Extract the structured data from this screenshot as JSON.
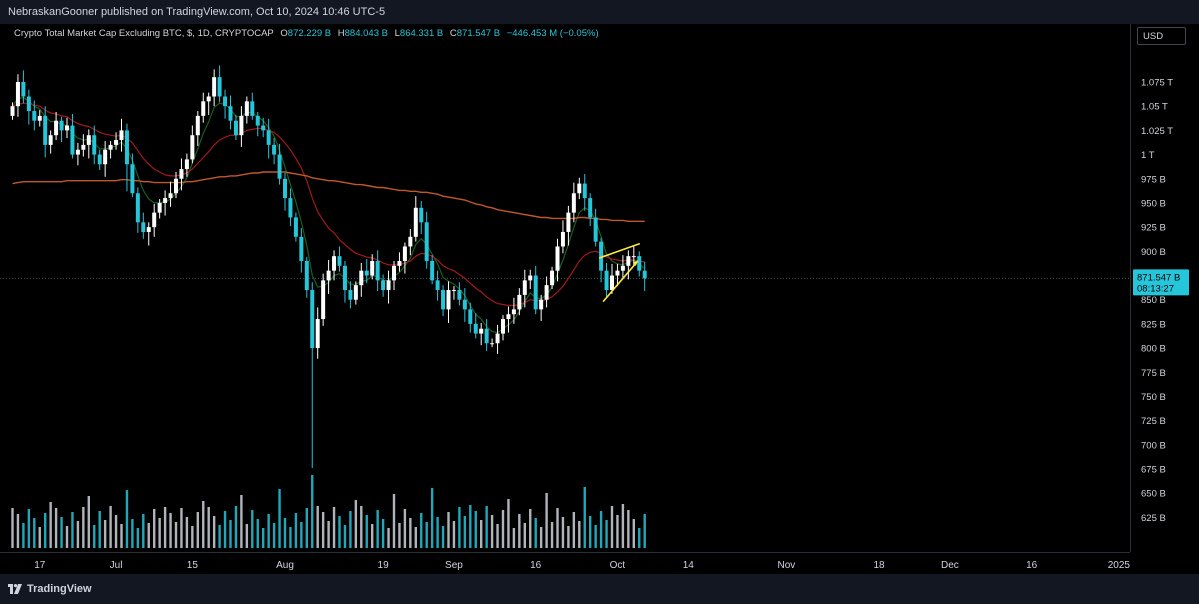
{
  "header": {
    "published": "NebraskanGooner published on TradingView.com, Oct 10, 2024 10:46 UTC-5"
  },
  "legend": {
    "symbol": "Crypto Total Market Cap Excluding BTC, $, 1D, CRYPTOCAP",
    "o_label": "O",
    "open": "872.229 B",
    "h_label": "H",
    "high": "884.043 B",
    "l_label": "L",
    "low": "864.331 B",
    "c_label": "C",
    "close": "871.547 B",
    "change": "−446.453 M (−0.05%)"
  },
  "price_axis": {
    "currency": "USD",
    "current_price": "871.547 B",
    "countdown": "08:13:27"
  },
  "footer": {
    "brand": "TradingView"
  },
  "colors": {
    "up": "#ffffff",
    "down": "#26c6da",
    "ema_fast": "#1b5e20",
    "ema_mid": "#a11a1a",
    "ema_slow": "#c0582b",
    "drawing": "#ffeb3b",
    "price_label_bg": "#26c6da"
  },
  "chart_data": {
    "type": "candlestick",
    "title": "Crypto Total Market Cap Excluding BTC, $, 1D, CRYPTOCAP",
    "ylabel": "USD",
    "ylim": [
      620,
      1085
    ],
    "y_ticks": [
      "1.075 T",
      "1.05 T",
      "1.025 T",
      "1 T",
      "975 B",
      "950 B",
      "925 B",
      "900 B",
      "875 B",
      "850 B",
      "825 B",
      "800 B",
      "775 B",
      "750 B",
      "725 B",
      "700 B",
      "675 B",
      "650 B",
      "625 B"
    ],
    "y_tick_values": [
      1075,
      1050,
      1025,
      1000,
      975,
      950,
      925,
      900,
      875,
      850,
      825,
      800,
      775,
      750,
      725,
      700,
      675,
      650,
      625
    ],
    "x_ticks": [
      {
        "label": "17",
        "date": "2024-06-17"
      },
      {
        "label": "Jul",
        "date": "2024-07-01"
      },
      {
        "label": "15",
        "date": "2024-07-15"
      },
      {
        "label": "Aug",
        "date": "2024-08-01"
      },
      {
        "label": "19",
        "date": "2024-08-19"
      },
      {
        "label": "Sep",
        "date": "2024-09-01"
      },
      {
        "label": "16",
        "date": "2024-09-16"
      },
      {
        "label": "Oct",
        "date": "2024-10-01"
      },
      {
        "label": "14",
        "date": "2024-10-14"
      },
      {
        "label": "Nov",
        "date": "2024-11-01"
      },
      {
        "label": "18",
        "date": "2024-11-18"
      },
      {
        "label": "Dec",
        "date": "2024-12-01"
      },
      {
        "label": "16",
        "date": "2024-12-16"
      },
      {
        "label": "2025",
        "date": "2025-01-01"
      }
    ],
    "start_date": "2024-06-12",
    "closes": [
      1050,
      1075,
      1060,
      1045,
      1035,
      1040,
      1010,
      1020,
      1035,
      1025,
      1030,
      1000,
      1005,
      1010,
      1020,
      1000,
      990,
      1005,
      1010,
      1015,
      1025,
      990,
      960,
      930,
      920,
      925,
      940,
      950,
      955,
      960,
      975,
      985,
      995,
      1020,
      1040,
      1055,
      1060,
      1080,
      1060,
      1050,
      1035,
      1020,
      1040,
      1055,
      1040,
      1030,
      1025,
      1010,
      1000,
      975,
      955,
      935,
      915,
      890,
      860,
      800,
      830,
      870,
      880,
      895,
      885,
      860,
      850,
      865,
      880,
      875,
      890,
      870,
      860,
      870,
      885,
      890,
      905,
      915,
      945,
      930,
      890,
      870,
      860,
      840,
      860,
      860,
      850,
      840,
      825,
      815,
      820,
      805,
      805,
      815,
      830,
      835,
      840,
      855,
      870,
      875,
      840,
      850,
      865,
      880,
      905,
      920,
      940,
      960,
      970,
      955,
      935,
      910,
      880,
      860,
      875,
      880,
      885,
      895,
      895,
      880,
      872
    ],
    "series": [
      {
        "name": "EMA fast",
        "values": [
          1050,
          1058,
          1059,
          1055,
          1050,
          1047,
          1039,
          1034,
          1034,
          1031,
          1030,
          1022,
          1017,
          1015,
          1016,
          1012,
          1006,
          1006,
          1007,
          1009,
          1013,
          1006,
          994,
          978,
          963,
          954,
          950,
          950,
          951,
          954,
          960,
          967,
          976,
          991,
          1006,
          1022,
          1034,
          1049,
          1053,
          1052,
          1047,
          1039,
          1039,
          1044,
          1043,
          1039,
          1035,
          1028,
          1019,
          1004,
          987,
          969,
          951,
          930,
          906,
          875,
          863,
          864,
          868,
          875,
          877,
          872,
          866,
          866,
          869,
          870,
          875,
          874,
          870,
          870,
          874,
          878,
          885,
          893,
          907,
          913,
          907,
          897,
          887,
          873,
          869,
          866,
          861,
          854,
          844,
          835,
          830,
          822,
          817,
          816,
          820,
          824,
          829,
          838,
          848,
          857,
          852,
          851,
          855,
          863,
          877,
          891,
          907,
          925,
          940,
          945,
          942,
          932,
          915,
          897,
          890,
          887,
          886,
          889,
          891,
          887,
          882
        ]
      },
      {
        "name": "EMA mid",
        "values": [
          1050,
          1052,
          1053,
          1053,
          1051,
          1050,
          1046,
          1043,
          1042,
          1040,
          1039,
          1035,
          1032,
          1030,
          1029,
          1026,
          1023,
          1021,
          1020,
          1019,
          1020,
          1017,
          1012,
          1004,
          996,
          990,
          985,
          982,
          979,
          978,
          978,
          979,
          981,
          985,
          991,
          997,
          1003,
          1010,
          1015,
          1018,
          1020,
          1020,
          1022,
          1025,
          1026,
          1027,
          1027,
          1025,
          1023,
          1018,
          1012,
          1005,
          996,
          986,
          973,
          955,
          941,
          932,
          924,
          919,
          912,
          907,
          902,
          898,
          896,
          894,
          893,
          891,
          888,
          886,
          886,
          886,
          888,
          890,
          895,
          898,
          897,
          895,
          891,
          885,
          882,
          880,
          876,
          872,
          867,
          862,
          858,
          853,
          849,
          846,
          845,
          844,
          844,
          845,
          847,
          850,
          849,
          849,
          850,
          853,
          858,
          864,
          872,
          881,
          890,
          896,
          899,
          900,
          898,
          894,
          892,
          891,
          890,
          891,
          891,
          890,
          889
        ]
      },
      {
        "name": "EMA slow",
        "values": [
          970,
          971,
          972,
          972,
          972,
          972,
          972,
          972,
          972,
          972,
          973,
          973,
          973,
          973,
          973,
          973,
          973,
          973,
          973,
          973,
          974,
          974,
          973,
          973,
          972,
          972,
          971,
          971,
          971,
          971,
          971,
          971,
          972,
          972,
          973,
          974,
          975,
          976,
          977,
          977,
          978,
          978,
          979,
          980,
          981,
          981,
          982,
          982,
          982,
          982,
          982,
          981,
          980,
          979,
          978,
          976,
          975,
          974,
          973,
          973,
          972,
          971,
          970,
          969,
          969,
          968,
          967,
          966,
          966,
          965,
          964,
          963,
          963,
          962,
          962,
          961,
          961,
          960,
          959,
          957,
          956,
          955,
          954,
          953,
          951,
          949,
          948,
          946,
          945,
          943,
          942,
          941,
          940,
          939,
          938,
          937,
          936,
          935,
          935,
          934,
          934,
          934,
          934,
          934,
          935,
          935,
          934,
          934,
          933,
          933,
          932,
          932,
          932,
          931,
          931,
          931,
          931
        ]
      }
    ],
    "annotation": {
      "type": "rising-wedge",
      "color": "#ffeb3b"
    }
  }
}
